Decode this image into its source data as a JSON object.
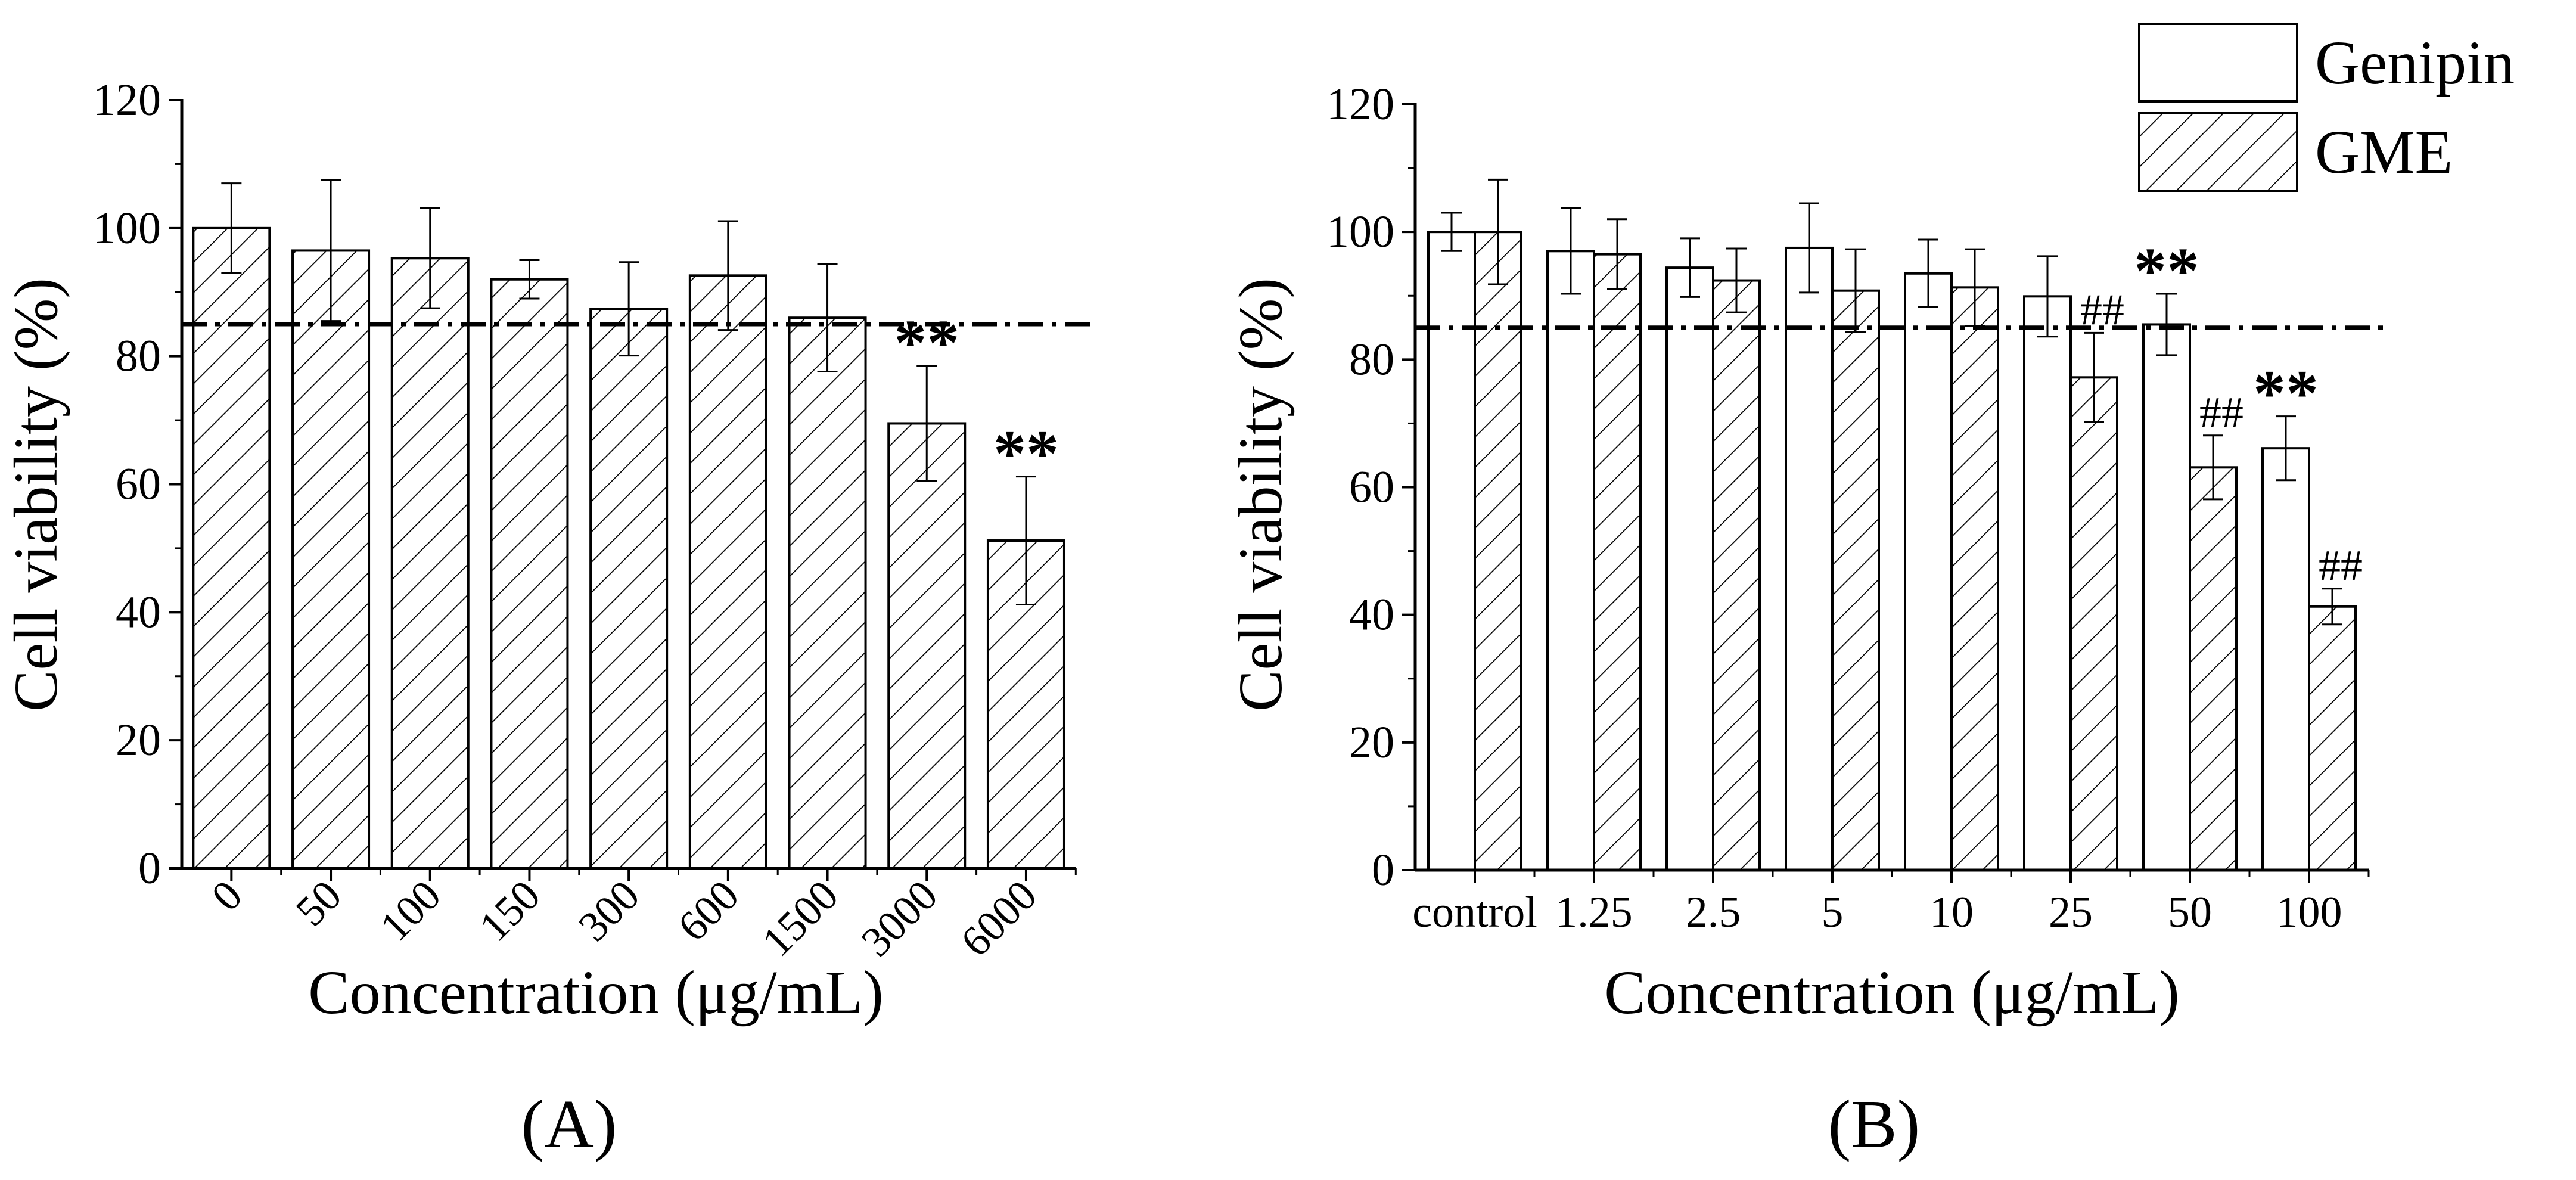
{
  "chart_data": [
    {
      "type": "bar",
      "panel_label": "(A)",
      "title": "",
      "xlabel": "Concentration (μg/mL)",
      "ylabel": "Cell viability (%)",
      "ylim": [
        0,
        120
      ],
      "yticks": [
        "0",
        "20",
        "40",
        "60",
        "80",
        "100",
        "120"
      ],
      "categories": [
        "0",
        "50",
        "100",
        "150",
        "300",
        "600",
        "1500",
        "3000",
        "6000"
      ],
      "series": [
        {
          "name": "GME",
          "pattern": "hatch",
          "values": [
            100,
            96.5,
            95.3,
            92,
            87.4,
            92.6,
            86,
            69.5,
            51.2
          ],
          "errors": [
            7,
            11,
            7.8,
            3,
            7.3,
            8.5,
            8.4,
            9,
            10
          ]
        }
      ],
      "reference_line": 85,
      "annotations": [
        {
          "category": "3000",
          "text": "**"
        },
        {
          "category": "6000",
          "text": "**"
        }
      ],
      "grid": false
    },
    {
      "type": "bar",
      "panel_label": "(B)",
      "title": "",
      "xlabel": "Concentration (μg/mL)",
      "ylabel": "Cell viability (%)",
      "ylim": [
        0,
        120
      ],
      "yticks": [
        "0",
        "20",
        "40",
        "60",
        "80",
        "100",
        "120"
      ],
      "categories": [
        "control",
        "1.25",
        "2.5",
        "5",
        "10",
        "25",
        "50",
        "100"
      ],
      "series": [
        {
          "name": "Genipin",
          "pattern": "open",
          "values": [
            100,
            97,
            94.4,
            97.5,
            93.5,
            89.9,
            85.5,
            66.1
          ],
          "errors": [
            3,
            6.7,
            4.6,
            7,
            5.3,
            6.3,
            4.8,
            5
          ]
        },
        {
          "name": "GME",
          "pattern": "hatch",
          "values": [
            100,
            96.5,
            92.4,
            90.8,
            91.3,
            77.2,
            63.1,
            41.3
          ],
          "errors": [
            8.2,
            5.5,
            5,
            6.5,
            6,
            7,
            5,
            2.8
          ]
        }
      ],
      "reference_line": 85,
      "legend": {
        "placement": "top-right",
        "entries": [
          "Genipin",
          "GME"
        ]
      },
      "annotations": [
        {
          "category": "25",
          "series": "GME",
          "text": "##"
        },
        {
          "category": "50",
          "series": "Genipin",
          "text": "**"
        },
        {
          "category": "50",
          "series": "GME",
          "text": "##"
        },
        {
          "category": "100",
          "series": "Genipin",
          "text": "**"
        },
        {
          "category": "100",
          "series": "GME",
          "text": "##"
        }
      ],
      "grid": false
    }
  ]
}
